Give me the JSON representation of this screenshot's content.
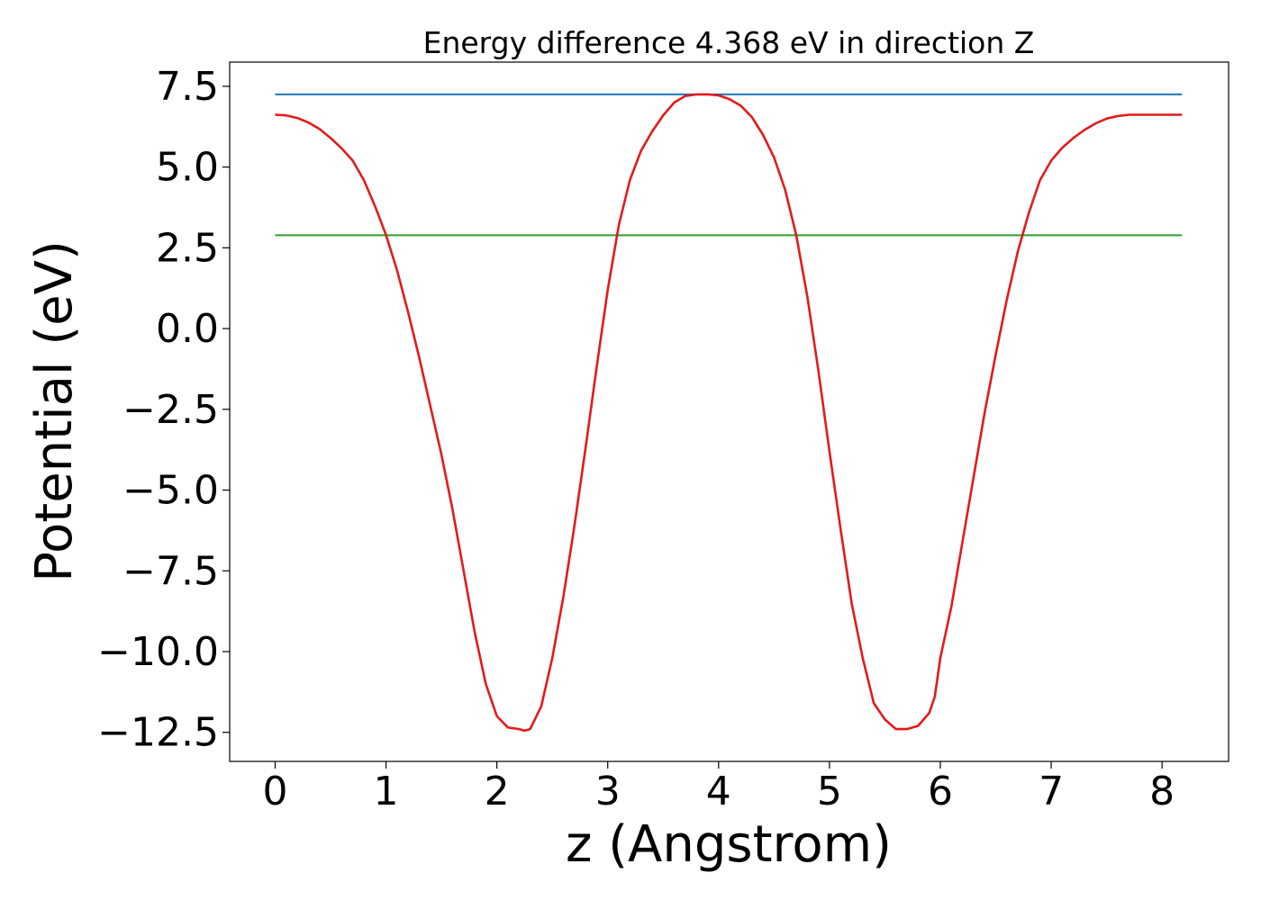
{
  "chart_data": {
    "type": "line",
    "title": "Energy difference 4.368 eV in direction Z",
    "xlabel": "z (Angstrom)",
    "ylabel": "Potential (eV)",
    "xlim": [
      -0.41,
      8.6
    ],
    "ylim": [
      -13.4,
      8.25
    ],
    "grid": false,
    "x_ticks": [
      0,
      1,
      2,
      3,
      4,
      5,
      6,
      7,
      8
    ],
    "x_tick_labels": [
      "0",
      "1",
      "2",
      "3",
      "4",
      "5",
      "6",
      "7",
      "8"
    ],
    "y_ticks": [
      7.5,
      5.0,
      2.5,
      0.0,
      -2.5,
      -5.0,
      -7.5,
      -10.0,
      -12.5
    ],
    "y_tick_labels": [
      "7.5",
      "5.0",
      "2.5",
      "0.0",
      "−2.5",
      "−5.0",
      "−7.5",
      "−10.0",
      "−12.5"
    ],
    "series": [
      {
        "color": "#1f77b4",
        "kind": "hline",
        "x": [
          0.0,
          8.18
        ],
        "y": [
          7.25,
          7.25
        ]
      },
      {
        "color": "#2ca02c",
        "kind": "hline",
        "x": [
          0.0,
          8.18
        ],
        "y": [
          2.89,
          2.89
        ]
      },
      {
        "color": "#e31a1c",
        "kind": "curve",
        "x": [
          0.0,
          0.1,
          0.2,
          0.3,
          0.4,
          0.5,
          0.6,
          0.7,
          0.8,
          0.9,
          1.0,
          1.1,
          1.2,
          1.3,
          1.4,
          1.5,
          1.6,
          1.7,
          1.8,
          1.9,
          2.0,
          2.1,
          2.2,
          2.25,
          2.3,
          2.4,
          2.5,
          2.6,
          2.7,
          2.8,
          2.9,
          3.0,
          3.1,
          3.2,
          3.3,
          3.4,
          3.5,
          3.6,
          3.7,
          3.8,
          3.9,
          4.0,
          4.1,
          4.2,
          4.3,
          4.4,
          4.5,
          4.6,
          4.7,
          4.8,
          4.9,
          5.0,
          5.1,
          5.2,
          5.3,
          5.4,
          5.5,
          5.6,
          5.7,
          5.8,
          5.9,
          5.95,
          6.0,
          6.1,
          6.2,
          6.3,
          6.4,
          6.5,
          6.6,
          6.7,
          6.8,
          6.9,
          7.0,
          7.1,
          7.2,
          7.3,
          7.4,
          7.5,
          7.6,
          7.7,
          7.8,
          7.9,
          8.0,
          8.1,
          8.18
        ],
        "y": [
          6.62,
          6.6,
          6.52,
          6.38,
          6.18,
          5.9,
          5.58,
          5.2,
          4.6,
          3.8,
          2.9,
          1.8,
          0.5,
          -0.9,
          -2.4,
          -3.9,
          -5.6,
          -7.5,
          -9.4,
          -11.0,
          -12.0,
          -12.35,
          -12.4,
          -12.45,
          -12.4,
          -11.7,
          -10.2,
          -8.3,
          -6.1,
          -3.7,
          -1.2,
          1.2,
          3.2,
          4.6,
          5.5,
          6.1,
          6.6,
          7.0,
          7.2,
          7.25,
          7.25,
          7.22,
          7.1,
          6.9,
          6.55,
          6.0,
          5.3,
          4.3,
          2.9,
          1.0,
          -1.3,
          -3.8,
          -6.2,
          -8.5,
          -10.2,
          -11.6,
          -12.1,
          -12.4,
          -12.4,
          -12.3,
          -11.9,
          -11.4,
          -10.2,
          -8.6,
          -6.6,
          -4.6,
          -2.6,
          -0.8,
          0.9,
          2.4,
          3.6,
          4.6,
          5.2,
          5.6,
          5.9,
          6.15,
          6.35,
          6.5,
          6.58,
          6.62,
          6.62,
          6.62,
          6.62,
          6.62,
          6.62
        ]
      }
    ]
  }
}
